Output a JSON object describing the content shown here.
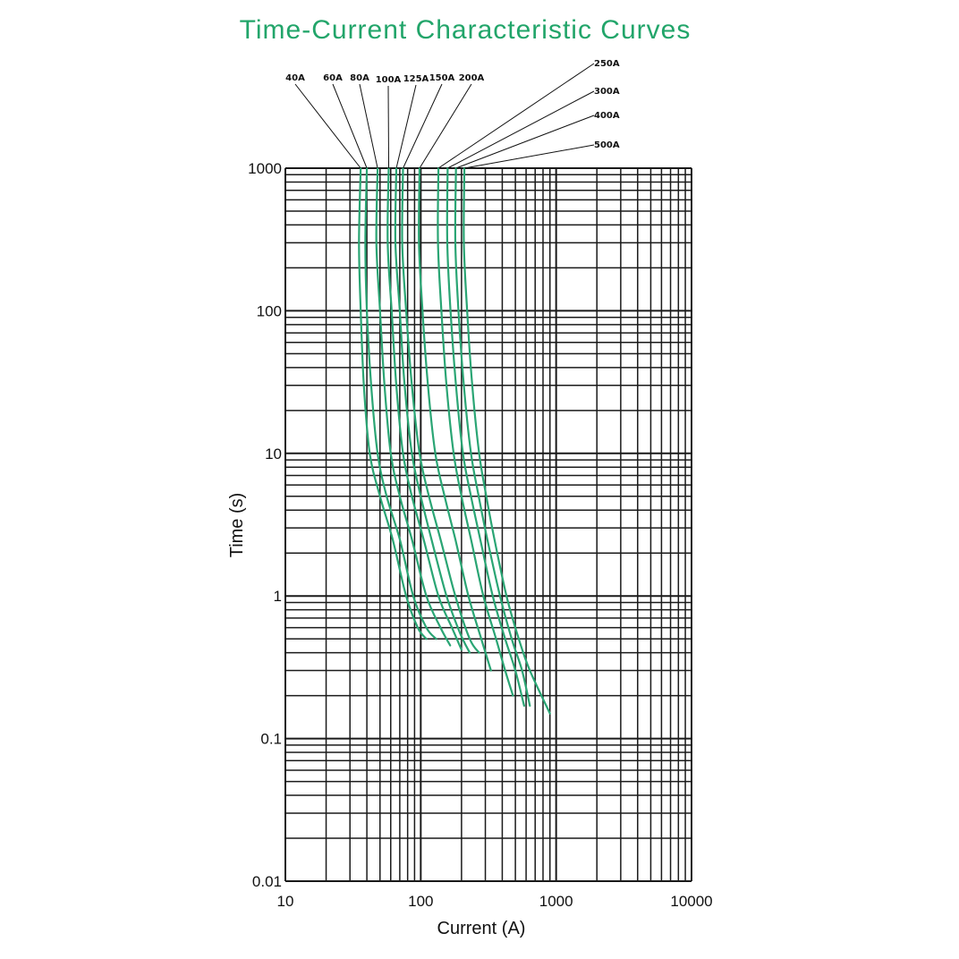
{
  "chart_data": {
    "type": "line",
    "title": "Time-Current Characteristic Curves",
    "xlabel": "Current (A)",
    "ylabel": "Time (s)",
    "x_scale": "log",
    "y_scale": "log",
    "xlim": [
      10,
      10000
    ],
    "ylim": [
      0.01,
      1000
    ],
    "x_ticks": [
      10,
      100,
      1000,
      10000
    ],
    "x_tick_labels": [
      "10",
      "100",
      "1000",
      "10000"
    ],
    "y_ticks": [
      1000,
      100,
      10,
      1,
      0.1,
      0.01
    ],
    "y_tick_labels": [
      "1000",
      "100",
      "10",
      "1",
      "0.1",
      "0.01"
    ],
    "grid": true,
    "curve_color": "#2aa574",
    "title_color": "#22a56a",
    "series": [
      {
        "name": "40A",
        "points": [
          [
            36,
            1000
          ],
          [
            35,
            300
          ],
          [
            36,
            100
          ],
          [
            38,
            30
          ],
          [
            42,
            10
          ],
          [
            50,
            5
          ],
          [
            62,
            2.5
          ],
          [
            78,
            1
          ],
          [
            95,
            0.6
          ],
          [
            110,
            0.5
          ]
        ]
      },
      {
        "name": "60A",
        "points": [
          [
            40,
            1000
          ],
          [
            39,
            300
          ],
          [
            40,
            100
          ],
          [
            43,
            30
          ],
          [
            48,
            10
          ],
          [
            56,
            5
          ],
          [
            70,
            2.5
          ],
          [
            88,
            1
          ],
          [
            110,
            0.6
          ],
          [
            130,
            0.5
          ]
        ]
      },
      {
        "name": "80A",
        "points": [
          [
            48,
            1000
          ],
          [
            47,
            300
          ],
          [
            50,
            100
          ],
          [
            54,
            30
          ],
          [
            60,
            10
          ],
          [
            70,
            5
          ],
          [
            86,
            2.5
          ],
          [
            110,
            1
          ],
          [
            140,
            0.6
          ],
          [
            165,
            0.45
          ]
        ]
      },
      {
        "name": "100A",
        "points": [
          [
            58,
            1000
          ],
          [
            57,
            300
          ],
          [
            61,
            100
          ],
          [
            66,
            30
          ],
          [
            74,
            10
          ],
          [
            86,
            5
          ],
          [
            105,
            2.5
          ],
          [
            135,
            1
          ],
          [
            170,
            0.6
          ],
          [
            200,
            0.42
          ]
        ]
      },
      {
        "name": "125A",
        "points": [
          [
            66,
            1000
          ],
          [
            65,
            300
          ],
          [
            70,
            100
          ],
          [
            76,
            30
          ],
          [
            86,
            10
          ],
          [
            100,
            5
          ],
          [
            120,
            2.5
          ],
          [
            155,
            1
          ],
          [
            195,
            0.55
          ],
          [
            230,
            0.4
          ]
        ]
      },
      {
        "name": "150A",
        "points": [
          [
            74,
            1000
          ],
          [
            73,
            300
          ],
          [
            78,
            100
          ],
          [
            86,
            30
          ],
          [
            98,
            10
          ],
          [
            115,
            5
          ],
          [
            140,
            2.5
          ],
          [
            180,
            1
          ],
          [
            230,
            0.5
          ],
          [
            270,
            0.4
          ]
        ]
      },
      {
        "name": "200A",
        "points": [
          [
            98,
            1000
          ],
          [
            97,
            300
          ],
          [
            103,
            100
          ],
          [
            113,
            30
          ],
          [
            128,
            10
          ],
          [
            150,
            5
          ],
          [
            180,
            2.5
          ],
          [
            225,
            1
          ],
          [
            280,
            0.5
          ],
          [
            330,
            0.3
          ]
        ]
      },
      {
        "name": "250A",
        "points": [
          [
            135,
            1000
          ],
          [
            134,
            300
          ],
          [
            142,
            100
          ],
          [
            155,
            30
          ],
          [
            175,
            10
          ],
          [
            200,
            5
          ],
          [
            235,
            2.5
          ],
          [
            290,
            1
          ],
          [
            360,
            0.5
          ],
          [
            420,
            0.3
          ],
          [
            480,
            0.2
          ]
        ]
      },
      {
        "name": "300A",
        "points": [
          [
            158,
            1000
          ],
          [
            157,
            300
          ],
          [
            166,
            100
          ],
          [
            182,
            30
          ],
          [
            205,
            10
          ],
          [
            235,
            5
          ],
          [
            275,
            2.5
          ],
          [
            340,
            1
          ],
          [
            420,
            0.5
          ],
          [
            500,
            0.3
          ],
          [
            580,
            0.17
          ]
        ]
      },
      {
        "name": "400A",
        "points": [
          [
            182,
            1000
          ],
          [
            180,
            300
          ],
          [
            190,
            100
          ],
          [
            208,
            30
          ],
          [
            235,
            10
          ],
          [
            268,
            5
          ],
          [
            310,
            2.5
          ],
          [
            385,
            1
          ],
          [
            470,
            0.5
          ],
          [
            560,
            0.3
          ],
          [
            640,
            0.17
          ]
        ]
      },
      {
        "name": "500A",
        "points": [
          [
            210,
            1000
          ],
          [
            208,
            300
          ],
          [
            220,
            100
          ],
          [
            240,
            30
          ],
          [
            270,
            10
          ],
          [
            305,
            5
          ],
          [
            350,
            2.5
          ],
          [
            430,
            1
          ],
          [
            530,
            0.5
          ],
          [
            640,
            0.3
          ],
          [
            900,
            0.15
          ]
        ]
      }
    ]
  }
}
